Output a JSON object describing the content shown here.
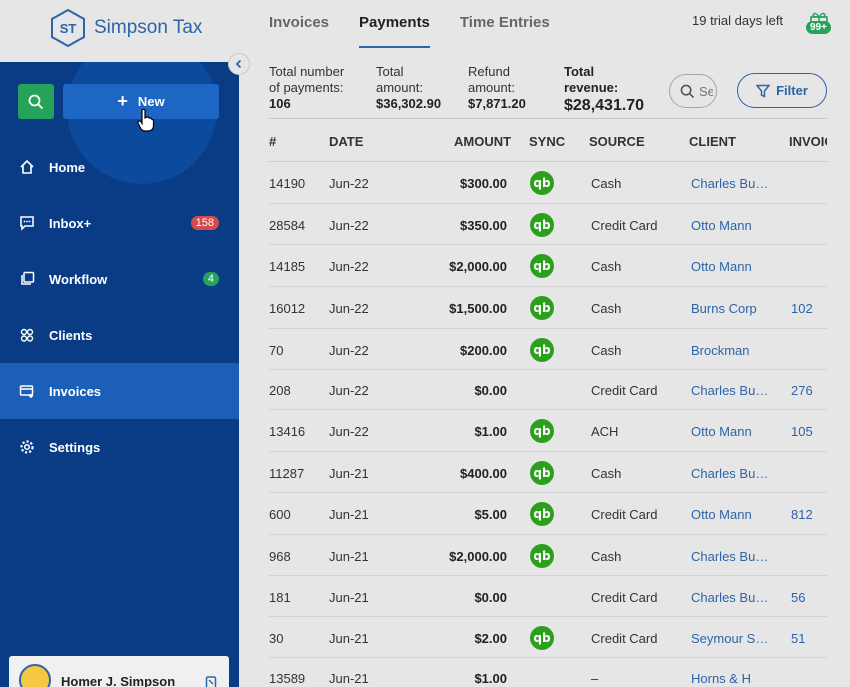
{
  "brand": {
    "name": "Simpson Tax",
    "initials": "ST"
  },
  "sidebar": {
    "new_label": "New",
    "items": [
      {
        "label": "Home",
        "badge": ""
      },
      {
        "label": "Inbox+",
        "badge": "158"
      },
      {
        "label": "Workflow",
        "badge": "4"
      },
      {
        "label": "Clients",
        "badge": ""
      },
      {
        "label": "Invoices",
        "badge": ""
      },
      {
        "label": "Settings",
        "badge": ""
      }
    ],
    "user_name": "Homer J. Simpson"
  },
  "tabs": [
    {
      "label": "Invoices"
    },
    {
      "label": "Payments"
    },
    {
      "label": "Time Entries"
    }
  ],
  "header": {
    "trial_text": "19 trial days left",
    "gift_badge": "99+"
  },
  "summary": {
    "count_label_1": "Total number",
    "count_label_2": "of payments:",
    "count_value": "106",
    "amount_label_1": "Total",
    "amount_label_2": "amount:",
    "amount_value": "$36,302.90",
    "refund_label_1": "Refund",
    "refund_label_2": "amount:",
    "refund_value": "$7,871.20",
    "revenue_label_1": "Total",
    "revenue_label_2": "revenue:",
    "revenue_value": "$28,431.70"
  },
  "search": {
    "placeholder": "Search"
  },
  "filter_label": "Filter",
  "table": {
    "columns": [
      "#",
      "DATE",
      "AMOUNT",
      "SYNC",
      "SOURCE",
      "CLIENT",
      "INVOICE"
    ],
    "rows": [
      {
        "num": "14190",
        "date": "Jun-22",
        "amount": "$300.00",
        "sync": true,
        "source": "Cash",
        "client": "Charles Burns",
        "invoice": ""
      },
      {
        "num": "28584",
        "date": "Jun-22",
        "amount": "$350.00",
        "sync": true,
        "source": "Credit Card",
        "client": "Otto Mann",
        "invoice": ""
      },
      {
        "num": "14185",
        "date": "Jun-22",
        "amount": "$2,000.00",
        "sync": true,
        "source": "Cash",
        "client": "Otto Mann",
        "invoice": ""
      },
      {
        "num": "16012",
        "date": "Jun-22",
        "amount": "$1,500.00",
        "sync": true,
        "source": "Cash",
        "client": "Burns Corp",
        "invoice": "102"
      },
      {
        "num": "70",
        "date": "Jun-22",
        "amount": "$200.00",
        "sync": true,
        "source": "Cash",
        "client": "Brockman",
        "invoice": ""
      },
      {
        "num": "208",
        "date": "Jun-22",
        "amount": "$0.00",
        "sync": false,
        "source": "Credit Card",
        "client": "Charles Burns",
        "invoice": "276"
      },
      {
        "num": "13416",
        "date": "Jun-22",
        "amount": "$1.00",
        "sync": true,
        "source": "ACH",
        "client": "Otto Mann",
        "invoice": "105"
      },
      {
        "num": "11287",
        "date": "Jun-21",
        "amount": "$400.00",
        "sync": true,
        "source": "Cash",
        "client": "Charles Burns",
        "invoice": ""
      },
      {
        "num": "600",
        "date": "Jun-21",
        "amount": "$5.00",
        "sync": true,
        "source": "Credit Card",
        "client": "Otto Mann",
        "invoice": "812"
      },
      {
        "num": "968",
        "date": "Jun-21",
        "amount": "$2,000.00",
        "sync": true,
        "source": "Cash",
        "client": "Charles Burns",
        "invoice": ""
      },
      {
        "num": "181",
        "date": "Jun-21",
        "amount": "$0.00",
        "sync": false,
        "source": "Credit Card",
        "client": "Charles Burns",
        "invoice": "56"
      },
      {
        "num": "30",
        "date": "Jun-21",
        "amount": "$2.00",
        "sync": true,
        "source": "Credit Card",
        "client": "Seymour Skinner",
        "invoice": "51"
      },
      {
        "num": "13589",
        "date": "Jun-21",
        "amount": "$1.00",
        "sync": false,
        "source": "–",
        "client": "Horns & H",
        "invoice": ""
      }
    ]
  },
  "colors": {
    "sidebar": "#0a3c86",
    "active_nav": "#1b5fb8",
    "accent": "#2d64a8",
    "green": "#25a35a",
    "qb_green": "#2ca01c"
  }
}
